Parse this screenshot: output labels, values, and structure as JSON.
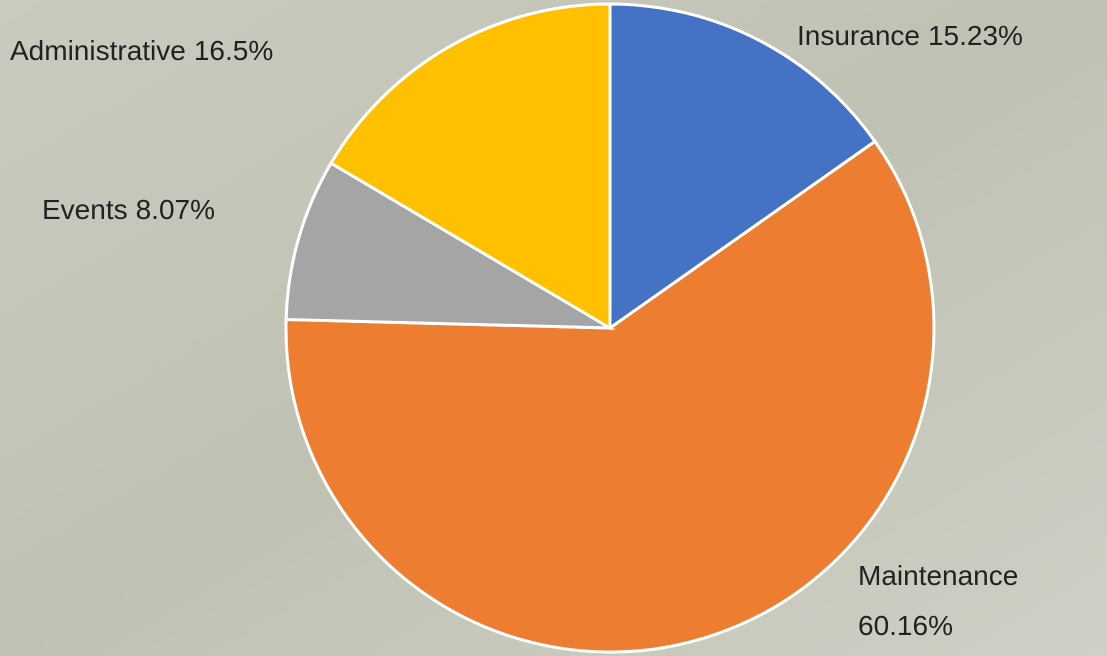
{
  "chart_data": {
    "type": "pie",
    "categories": [
      "Insurance",
      "Maintenance",
      "Events",
      "Administrative"
    ],
    "values": [
      15.23,
      60.16,
      8.07,
      16.5
    ],
    "value_labels": [
      "15.23%",
      "60.16%",
      "8.07%",
      "16.5%"
    ],
    "colors": [
      "#4472c4",
      "#ed7d31",
      "#a5a5a5",
      "#ffc000"
    ]
  }
}
